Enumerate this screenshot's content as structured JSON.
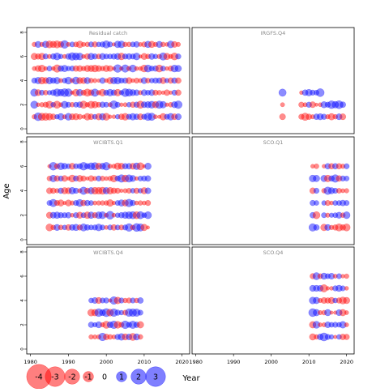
{
  "figure": {
    "ylabel": "Age",
    "xlabel": "Year"
  },
  "colors": {
    "negative": "#ff0000",
    "positive": "#0000ff",
    "panel_title": "#888888",
    "frame": "#000000"
  },
  "legend": {
    "labels": [
      "-4",
      "-3",
      "-2",
      "-1",
      "0",
      "1",
      "2",
      "3"
    ],
    "values": [
      -4,
      -3,
      -2,
      -1,
      0,
      1,
      2,
      3
    ]
  },
  "chart_data": {
    "type": "scatter",
    "encoding": "bubble",
    "x_ticks": [
      1980,
      1990,
      2000,
      2010,
      2020
    ],
    "y_ticks": [
      0,
      2,
      4,
      6,
      8
    ],
    "xlim": [
      1979,
      2022
    ],
    "ylim": [
      -0.4,
      8.4
    ],
    "panels": [
      {
        "title": "Residual catch",
        "ages": [
          1,
          2,
          3,
          4,
          5,
          6,
          7
        ],
        "years": [
          1981,
          2019
        ],
        "pattern": "every year, every age, mixed positive and negative residuals"
      },
      {
        "title": "IRGFS.Q4",
        "ages": [
          1,
          2,
          3
        ],
        "years": [
          2003,
          2019
        ],
        "pattern": "age 3 only from 2003 and 2008-2013; ages 1-2 from 2003 to 2019"
      },
      {
        "title": "WCIBTS.Q1",
        "ages": [
          1,
          2,
          3,
          4,
          5,
          6
        ],
        "years": [
          1985,
          2011
        ],
        "pattern": "1985-2011, large residuals around 2002-2009 at ages 3-4"
      },
      {
        "title": "SCO.Q1",
        "ages": [
          1,
          2,
          3,
          4,
          5,
          6
        ],
        "years": [
          2011,
          2020
        ],
        "pattern": "2011-2020, mostly positive residuals at older ages"
      },
      {
        "title": "WCIBTS.Q4",
        "ages": [
          1,
          2,
          3,
          4
        ],
        "years": [
          1996,
          2009
        ],
        "pattern": "1996-2009, mixed residuals"
      },
      {
        "title": "SCO.Q4",
        "ages": [
          1,
          2,
          3,
          4,
          5,
          6
        ],
        "years": [
          2011,
          2020
        ],
        "pattern": "2011-2020, large positive residuals at ages 5-6 around 2018-2019"
      }
    ]
  }
}
